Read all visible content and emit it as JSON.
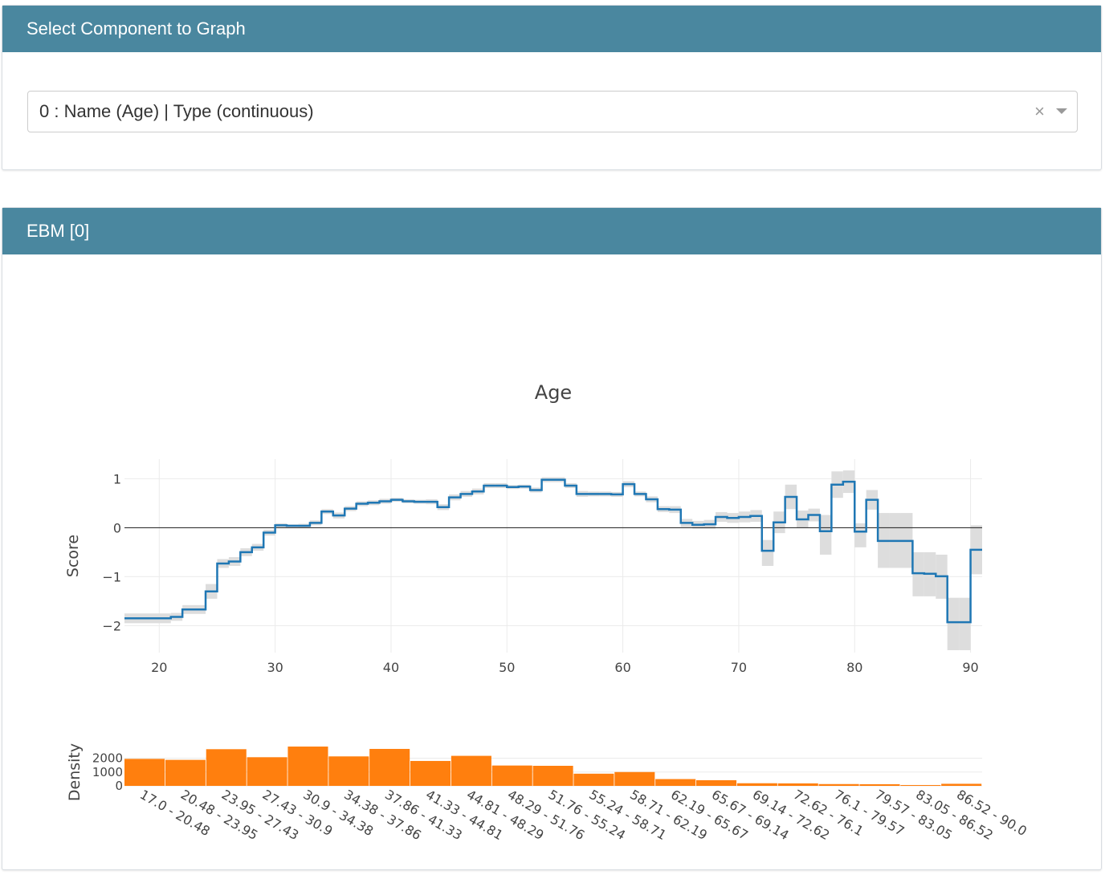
{
  "select_card": {
    "header": "Select Component to Graph",
    "selected_value": "0 : Name (Age) | Type (continuous)",
    "clear_symbol": "×",
    "arrow_icon": "caret-down-icon"
  },
  "ebm_card": {
    "header": "EBM [0]"
  },
  "colors": {
    "header_bg": "#4a879f",
    "score_line": "#1f77b4",
    "band": "#dddddd",
    "histogram": "#ff7f0e"
  },
  "chart_data": [
    {
      "type": "line",
      "title": "Age",
      "ylabel": "Score",
      "xlim": [
        17,
        91
      ],
      "ylim": [
        -2.55,
        1.4
      ],
      "x_ticks": [
        20,
        30,
        40,
        50,
        60,
        70,
        80,
        90
      ],
      "y_ticks": [
        1,
        0,
        -1,
        -2
      ],
      "y_tick_labels": [
        "1",
        "0",
        "−1",
        "−2"
      ],
      "zero_line": true,
      "grid": true,
      "step_edges": [
        17,
        21,
        22,
        24,
        25,
        26,
        27,
        28,
        29,
        30,
        31,
        32,
        33,
        34,
        35,
        36,
        37,
        38,
        39,
        40,
        41,
        42,
        43,
        44,
        45,
        46,
        47,
        48,
        49,
        50,
        51,
        52,
        53,
        54,
        55,
        56,
        57,
        58,
        59,
        60,
        61,
        62,
        63,
        64,
        65,
        66,
        67,
        68,
        69,
        70,
        71,
        72,
        73,
        74,
        75,
        76,
        77,
        78,
        79,
        80,
        81,
        82,
        83,
        84,
        85,
        86,
        87,
        88,
        89,
        90,
        91
      ],
      "score": [
        -1.85,
        -1.82,
        -1.67,
        -1.3,
        -0.73,
        -0.69,
        -0.5,
        -0.4,
        -0.1,
        0.05,
        0.04,
        0.04,
        0.1,
        0.33,
        0.25,
        0.39,
        0.49,
        0.51,
        0.54,
        0.57,
        0.54,
        0.53,
        0.53,
        0.42,
        0.62,
        0.69,
        0.74,
        0.86,
        0.86,
        0.83,
        0.84,
        0.77,
        0.98,
        0.98,
        0.86,
        0.69,
        0.69,
        0.69,
        0.68,
        0.89,
        0.69,
        0.58,
        0.38,
        0.37,
        0.1,
        0.06,
        0.07,
        0.22,
        0.2,
        0.22,
        0.24,
        -0.47,
        0.11,
        0.63,
        0.17,
        0.26,
        -0.07,
        0.88,
        0.94,
        -0.08,
        0.57,
        -0.27,
        -0.27,
        -0.27,
        -0.93,
        -0.94,
        -0.99,
        -1.93,
        -1.93,
        -0.45
      ],
      "upper": [
        -1.75,
        -1.74,
        -1.58,
        -1.15,
        -0.64,
        -0.6,
        -0.42,
        -0.33,
        -0.04,
        0.09,
        0.07,
        0.08,
        0.15,
        0.38,
        0.31,
        0.44,
        0.54,
        0.56,
        0.59,
        0.61,
        0.58,
        0.57,
        0.58,
        0.48,
        0.68,
        0.75,
        0.8,
        0.91,
        0.91,
        0.87,
        0.88,
        0.82,
        1.03,
        1.03,
        0.91,
        0.75,
        0.74,
        0.74,
        0.73,
        0.95,
        0.74,
        0.64,
        0.44,
        0.44,
        0.18,
        0.14,
        0.16,
        0.32,
        0.3,
        0.33,
        0.36,
        -0.25,
        0.33,
        0.88,
        0.35,
        0.39,
        0.26,
        1.15,
        1.17,
        0.09,
        0.77,
        0.3,
        0.3,
        0.3,
        -0.5,
        -0.5,
        -0.55,
        -1.43,
        -1.43,
        0.05
      ],
      "lower": [
        -1.95,
        -1.9,
        -1.76,
        -1.45,
        -0.82,
        -0.78,
        -0.58,
        -0.47,
        -0.16,
        0.01,
        0.01,
        0.0,
        0.05,
        0.28,
        0.19,
        0.34,
        0.44,
        0.46,
        0.49,
        0.53,
        0.5,
        0.49,
        0.48,
        0.36,
        0.56,
        0.63,
        0.68,
        0.81,
        0.81,
        0.79,
        0.8,
        0.72,
        0.93,
        0.93,
        0.81,
        0.63,
        0.64,
        0.64,
        0.63,
        0.83,
        0.64,
        0.52,
        0.32,
        0.3,
        0.02,
        -0.02,
        -0.02,
        0.12,
        0.1,
        0.11,
        0.12,
        -0.78,
        -0.11,
        0.38,
        -0.01,
        0.13,
        -0.55,
        0.61,
        0.71,
        -0.4,
        0.37,
        -0.82,
        -0.82,
        -0.82,
        -1.4,
        -1.4,
        -1.45,
        -2.5,
        -2.5,
        -0.95
      ]
    },
    {
      "type": "bar",
      "ylabel": "Density",
      "ylim": [
        0,
        2900
      ],
      "y_ticks": [
        0,
        1000,
        2000
      ],
      "y_tick_labels": [
        "0",
        "1000",
        "2000"
      ],
      "categories": [
        "17.0 - 20.48",
        "20.48 - 23.95",
        "23.95 - 27.43",
        "27.43 - 30.9",
        "30.9 - 34.38",
        "34.38 - 37.86",
        "37.86 - 41.33",
        "41.33 - 44.81",
        "44.81 - 48.29",
        "48.29 - 51.76",
        "51.76 - 55.24",
        "55.24 - 58.71",
        "58.71 - 62.19",
        "62.19 - 65.67",
        "65.67 - 69.14",
        "69.14 - 72.62",
        "72.62 - 76.1",
        "76.1 - 79.57",
        "79.57 - 83.05",
        "83.05 - 86.52",
        "86.52 - 90.0"
      ],
      "values": [
        1950,
        1880,
        2650,
        2070,
        2840,
        2130,
        2670,
        1800,
        2170,
        1470,
        1450,
        880,
        1000,
        490,
        410,
        190,
        180,
        130,
        120,
        60,
        150
      ]
    }
  ]
}
